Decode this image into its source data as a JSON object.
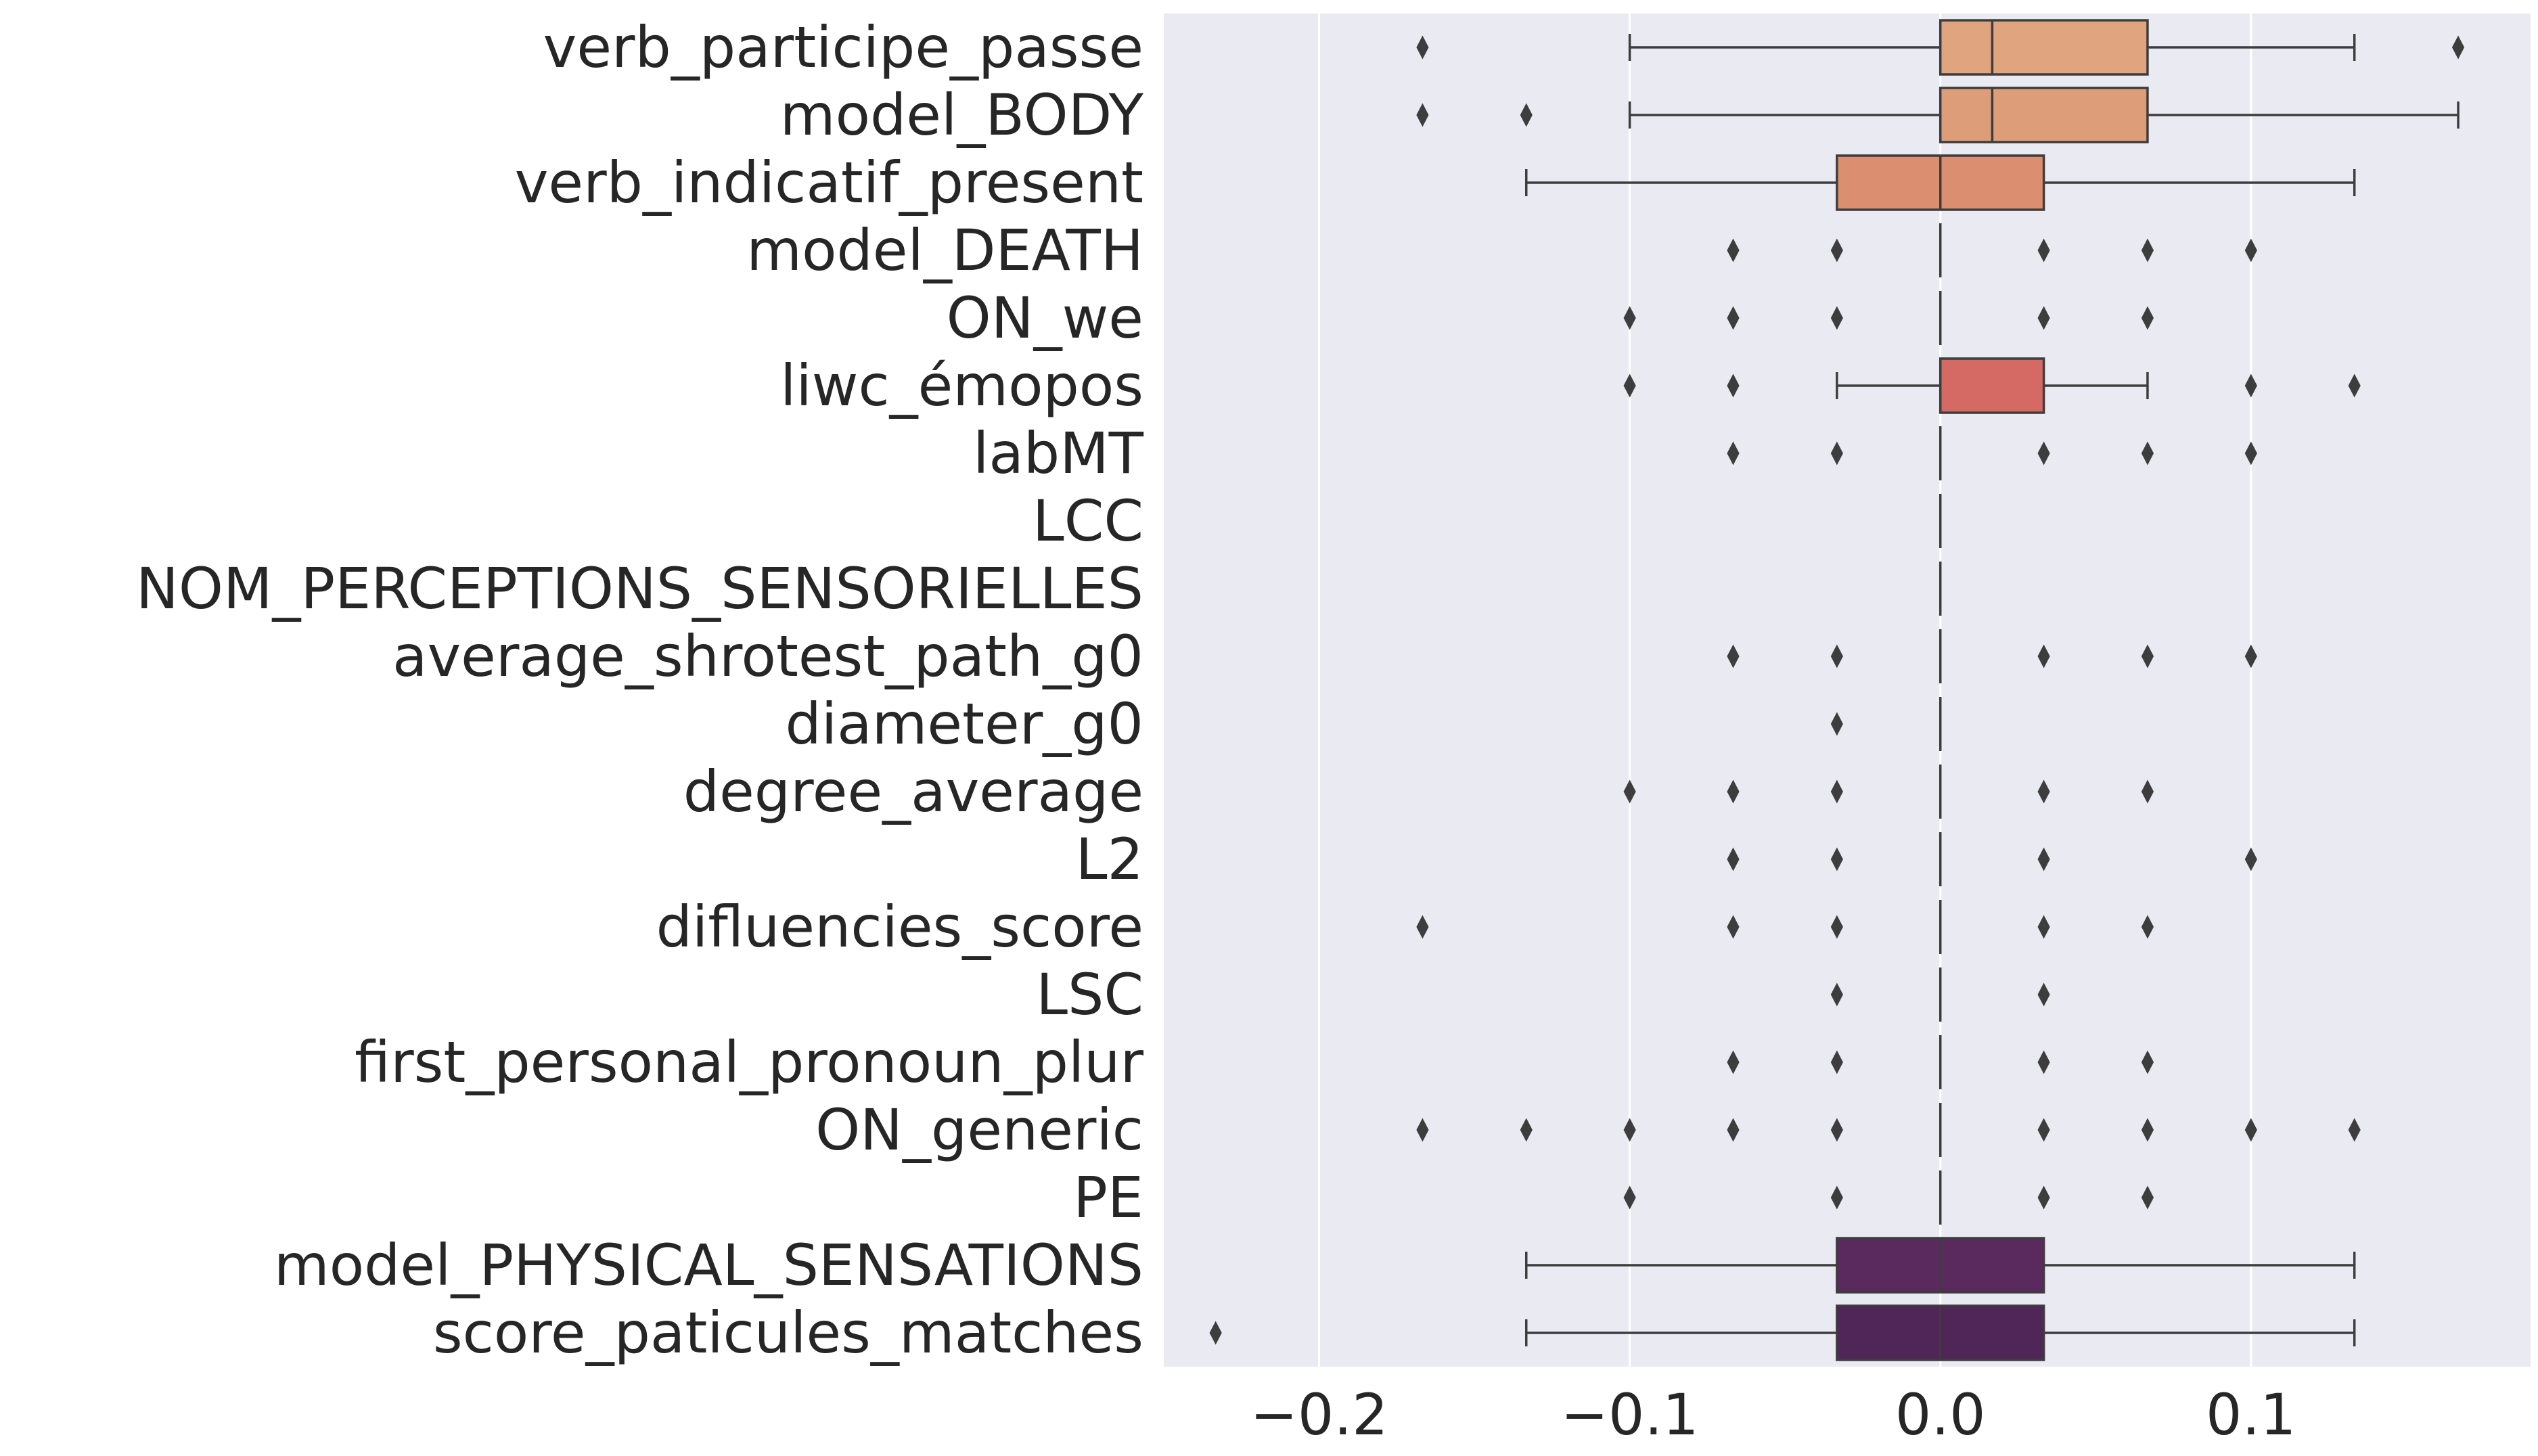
{
  "chart_data": {
    "type": "box",
    "orientation": "horizontal",
    "title": "",
    "xlabel": "",
    "ylabel": "",
    "xlim": [
      -0.25,
      0.19
    ],
    "xticks": [
      -0.2,
      -0.1,
      0.0,
      0.1
    ],
    "xtick_labels": [
      "−0.2",
      "−0.1",
      "0.0",
      "0.1"
    ],
    "grid": true,
    "background": "#eaeaf2",
    "categories": [
      {
        "name": "verb_participe_passe",
        "q1": 0.0,
        "median": 0.0167,
        "q3": 0.0667,
        "whisker_low": -0.1,
        "whisker_high": 0.1333,
        "outliers": [
          -0.1667,
          0.1667
        ],
        "color": "#e0a47f"
      },
      {
        "name": "model_BODY",
        "q1": 0.0,
        "median": 0.0167,
        "q3": 0.0667,
        "whisker_low": -0.1,
        "whisker_high": 0.1667,
        "outliers": [
          -0.1667,
          -0.1333
        ],
        "color": "#dd9d79"
      },
      {
        "name": "verb_indicatif_present",
        "q1": -0.0333,
        "median": 0.0,
        "q3": 0.0333,
        "whisker_low": -0.1333,
        "whisker_high": 0.1333,
        "outliers": [],
        "color": "#dc8f70"
      },
      {
        "name": "model_DEATH",
        "q1": 0.0,
        "median": 0.0,
        "q3": 0.0,
        "whisker_low": 0.0,
        "whisker_high": 0.0,
        "outliers": [
          -0.0667,
          -0.0333,
          0.0333,
          0.0667,
          0.1
        ],
        "color": "#d98469"
      },
      {
        "name": "ON_we",
        "q1": 0.0,
        "median": 0.0,
        "q3": 0.0,
        "whisker_low": 0.0,
        "whisker_high": 0.0,
        "outliers": [
          -0.1,
          -0.0667,
          -0.0333,
          0.0333,
          0.0667
        ],
        "color": "#d67964"
      },
      {
        "name": "liwc_émopos",
        "q1": 0.0,
        "median": 0.0,
        "q3": 0.0333,
        "whisker_low": -0.0333,
        "whisker_high": 0.0667,
        "outliers": [
          -0.1,
          -0.0667,
          0.1,
          0.1333
        ],
        "color": "#d56a64"
      },
      {
        "name": "labMT",
        "q1": 0.0,
        "median": 0.0,
        "q3": 0.0,
        "whisker_low": 0.0,
        "whisker_high": 0.0,
        "outliers": [
          -0.0667,
          -0.0333,
          0.0333,
          0.0667,
          0.1
        ],
        "color": "#cf5e63"
      },
      {
        "name": "LCC",
        "q1": 0.0,
        "median": 0.0,
        "q3": 0.0,
        "whisker_low": 0.0,
        "whisker_high": 0.0,
        "outliers": [],
        "color": "#c85563"
      },
      {
        "name": "NOM_PERCEPTIONS_SENSORIELLES",
        "q1": 0.0,
        "median": 0.0,
        "q3": 0.0,
        "whisker_low": 0.0,
        "whisker_high": 0.0,
        "outliers": [],
        "color": "#bf4c63"
      },
      {
        "name": "average_shrotest_path_g0",
        "q1": 0.0,
        "median": 0.0,
        "q3": 0.0,
        "whisker_low": 0.0,
        "whisker_high": 0.0,
        "outliers": [
          -0.0667,
          -0.0333,
          0.0333,
          0.0667,
          0.1
        ],
        "color": "#b34564"
      },
      {
        "name": "diameter_g0",
        "q1": 0.0,
        "median": 0.0,
        "q3": 0.0,
        "whisker_low": 0.0,
        "whisker_high": 0.0,
        "outliers": [
          -0.0333
        ],
        "color": "#a73f64"
      },
      {
        "name": "degree_average",
        "q1": 0.0,
        "median": 0.0,
        "q3": 0.0,
        "whisker_low": 0.0,
        "whisker_high": 0.0,
        "outliers": [
          -0.1,
          -0.0667,
          -0.0333,
          0.0333,
          0.0667
        ],
        "color": "#9a3a63"
      },
      {
        "name": "L2",
        "q1": 0.0,
        "median": 0.0,
        "q3": 0.0,
        "whisker_low": 0.0,
        "whisker_high": 0.0,
        "outliers": [
          -0.0667,
          -0.0333,
          0.0333,
          0.1
        ],
        "color": "#8d3662"
      },
      {
        "name": "difluencies_score",
        "q1": 0.0,
        "median": 0.0,
        "q3": 0.0,
        "whisker_low": 0.0,
        "whisker_high": 0.0,
        "outliers": [
          -0.1667,
          -0.0667,
          -0.0333,
          0.0333,
          0.0667
        ],
        "color": "#80325f"
      },
      {
        "name": "LSC",
        "q1": 0.0,
        "median": 0.0,
        "q3": 0.0,
        "whisker_low": 0.0,
        "whisker_high": 0.0,
        "outliers": [
          -0.0333,
          0.0333
        ],
        "color": "#732f5d"
      },
      {
        "name": "first_personal_pronoun_plur",
        "q1": 0.0,
        "median": 0.0,
        "q3": 0.0,
        "whisker_low": 0.0,
        "whisker_high": 0.0,
        "outliers": [
          -0.0667,
          -0.0333,
          0.0333,
          0.0667
        ],
        "color": "#672c5b"
      },
      {
        "name": "ON_generic",
        "q1": 0.0,
        "median": 0.0,
        "q3": 0.0,
        "whisker_low": 0.0,
        "whisker_high": 0.0,
        "outliers": [
          -0.1667,
          -0.1333,
          -0.1,
          -0.0667,
          -0.0333,
          0.0333,
          0.0667,
          0.1,
          0.1333
        ],
        "color": "#5d2a59"
      },
      {
        "name": "PE",
        "q1": 0.0,
        "median": 0.0,
        "q3": 0.0,
        "whisker_low": 0.0,
        "whisker_high": 0.0,
        "outliers": [
          -0.1,
          -0.0333,
          0.0333,
          0.0667
        ],
        "color": "#532857"
      },
      {
        "name": "model_PHYSICAL_SENSATIONS",
        "q1": -0.0333,
        "median": 0.0,
        "q3": 0.0333,
        "whisker_low": -0.1333,
        "whisker_high": 0.1333,
        "outliers": [],
        "color": "#5a2a5e"
      },
      {
        "name": "score_paticules_matches",
        "q1": -0.0333,
        "median": 0.0,
        "q3": 0.0333,
        "whisker_low": -0.1333,
        "whisker_high": 0.1333,
        "outliers": [
          -0.2333
        ],
        "color": "#4f2657"
      }
    ]
  }
}
